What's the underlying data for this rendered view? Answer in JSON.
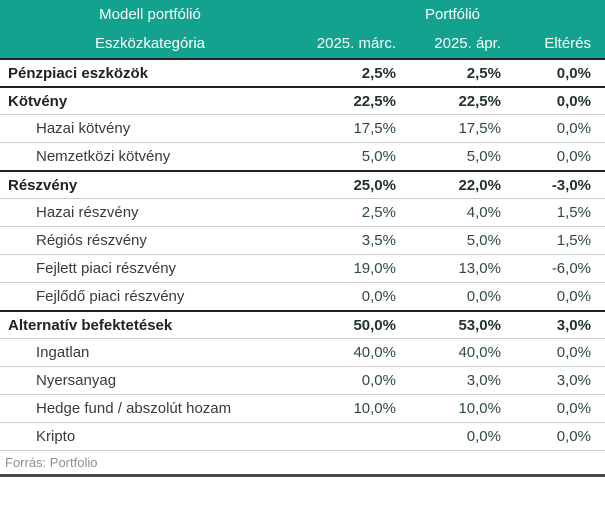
{
  "header": {
    "group_left": "Modell portfólió",
    "group_right": "Portfólió"
  },
  "chart_data": {
    "type": "table",
    "title": "Modell portfólió",
    "column_groups": [
      "Modell portfólió",
      "Portfólió"
    ],
    "columns": [
      "Eszközkategória",
      "2025. márc.",
      "2025. ápr.",
      "Eltérés"
    ],
    "rows": [
      {
        "label": "Pénzpiaci eszközök",
        "level": 0,
        "march": "2,5%",
        "april": "2,5%",
        "diff": "0,0%"
      },
      {
        "label": "Kötvény",
        "level": 0,
        "march": "22,5%",
        "april": "22,5%",
        "diff": "0,0%"
      },
      {
        "label": "Hazai kötvény",
        "level": 1,
        "march": "17,5%",
        "april": "17,5%",
        "diff": "0,0%"
      },
      {
        "label": "Nemzetközi kötvény",
        "level": 1,
        "march": "5,0%",
        "april": "5,0%",
        "diff": "0,0%"
      },
      {
        "label": "Részvény",
        "level": 0,
        "march": "25,0%",
        "april": "22,0%",
        "diff": "-3,0%"
      },
      {
        "label": "Hazai részvény",
        "level": 1,
        "march": "2,5%",
        "april": "4,0%",
        "diff": "1,5%"
      },
      {
        "label": "Régiós részvény",
        "level": 1,
        "march": "3,5%",
        "april": "5,0%",
        "diff": "1,5%"
      },
      {
        "label": "Fejlett piaci részvény",
        "level": 1,
        "march": "19,0%",
        "april": "13,0%",
        "diff": "-6,0%"
      },
      {
        "label": "Fejlődő piaci részvény",
        "level": 1,
        "march": "0,0%",
        "april": "0,0%",
        "diff": "0,0%"
      },
      {
        "label": "Alternatív befektetések",
        "level": 0,
        "march": "50,0%",
        "april": "53,0%",
        "diff": "3,0%"
      },
      {
        "label": "Ingatlan",
        "level": 1,
        "march": "40,0%",
        "april": "40,0%",
        "diff": "0,0%"
      },
      {
        "label": "Nyersanyag",
        "level": 1,
        "march": "0,0%",
        "april": "3,0%",
        "diff": "3,0%"
      },
      {
        "label": "Hedge fund / abszolút hozam",
        "level": 1,
        "march": "10,0%",
        "april": "10,0%",
        "diff": "0,0%"
      },
      {
        "label": "Kripto",
        "level": 1,
        "march": "",
        "april": "0,0%",
        "diff": "0,0%"
      }
    ]
  },
  "footer": {
    "source": "Forrás: Portfolio"
  },
  "colors": {
    "header_bg": "#13a28e",
    "header_text": "#ffffff",
    "bold_border": "#222222",
    "sub_border": "#cccccc",
    "value_text": "#2f4a44",
    "source_text": "#8f8f8f"
  }
}
